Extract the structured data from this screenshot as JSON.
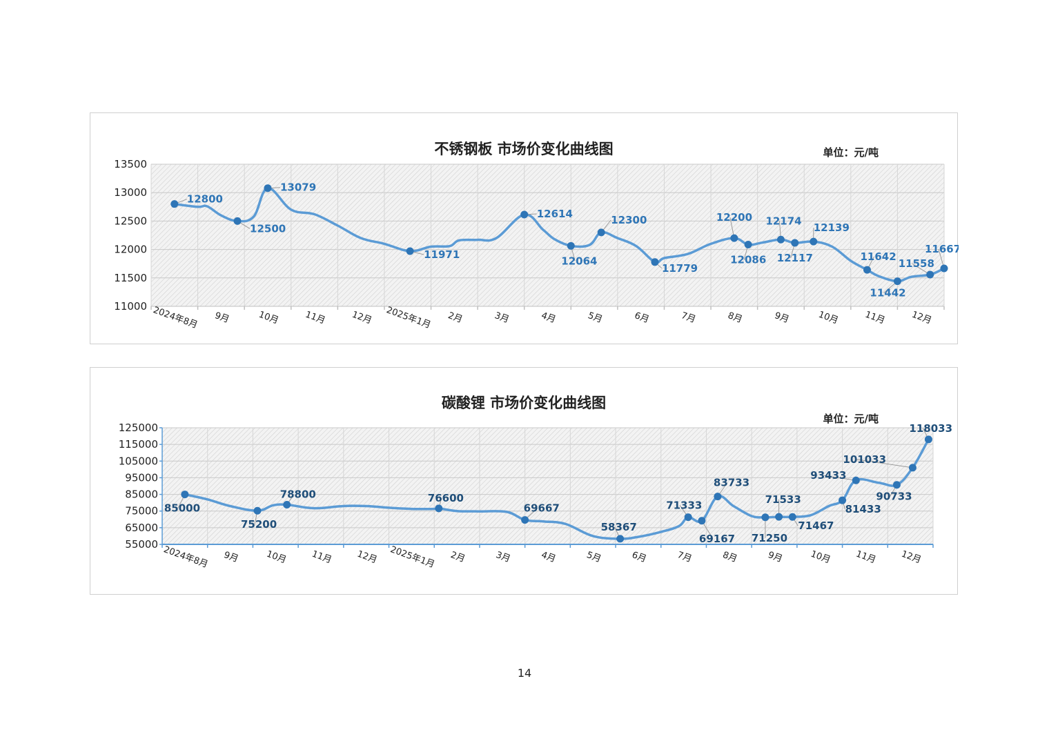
{
  "page": {
    "number": "14"
  },
  "chart_data": [
    {
      "type": "line",
      "title": "不锈钢板 市场价变化曲线图",
      "unit": "单位：元/吨",
      "xlabel": "",
      "ylabel": "",
      "ylim": [
        11000,
        13500
      ],
      "yticks": [
        11000,
        11500,
        12000,
        12500,
        13000,
        13500
      ],
      "x_range": [
        0,
        17
      ],
      "month_ticks": [
        "2024年8月",
        "9月",
        "10月",
        "11月",
        "12月",
        "2025年1月",
        "2月",
        "3月",
        "4月",
        "5月",
        "6月",
        "7月",
        "8月",
        "9月",
        "10月",
        "11月",
        "12月"
      ],
      "line_points": [
        [
          0.5,
          12800
        ],
        [
          1.0,
          12750
        ],
        [
          1.2,
          12760
        ],
        [
          1.5,
          12600
        ],
        [
          1.85,
          12500
        ],
        [
          2.2,
          12580
        ],
        [
          2.5,
          13079
        ],
        [
          3.0,
          12700
        ],
        [
          3.5,
          12620
        ],
        [
          4.0,
          12420
        ],
        [
          4.5,
          12200
        ],
        [
          5.0,
          12100
        ],
        [
          5.55,
          11971
        ],
        [
          6.0,
          12050
        ],
        [
          6.4,
          12060
        ],
        [
          6.6,
          12160
        ],
        [
          7.0,
          12170
        ],
        [
          7.4,
          12200
        ],
        [
          8.0,
          12614
        ],
        [
          8.4,
          12350
        ],
        [
          8.65,
          12180
        ],
        [
          9.0,
          12064
        ],
        [
          9.4,
          12080
        ],
        [
          9.65,
          12300
        ],
        [
          10.0,
          12200
        ],
        [
          10.4,
          12060
        ],
        [
          10.8,
          11779
        ],
        [
          11.0,
          11850
        ],
        [
          11.5,
          11920
        ],
        [
          12.0,
          12100
        ],
        [
          12.5,
          12200
        ],
        [
          12.8,
          12086
        ],
        [
          13.1,
          12120
        ],
        [
          13.5,
          12174
        ],
        [
          13.8,
          12117
        ],
        [
          14.2,
          12139
        ],
        [
          14.6,
          12050
        ],
        [
          15.0,
          11800
        ],
        [
          15.35,
          11642
        ],
        [
          15.6,
          11530
        ],
        [
          16.0,
          11442
        ],
        [
          16.3,
          11520
        ],
        [
          16.7,
          11558
        ],
        [
          17.0,
          11667
        ]
      ],
      "markers": [
        {
          "x": 0.5,
          "y": 12800,
          "label": "12800",
          "dx": 18,
          "dy": -2,
          "anchor": "start"
        },
        {
          "x": 1.85,
          "y": 12500,
          "label": "12500",
          "dx": 18,
          "dy": 16,
          "anchor": "start"
        },
        {
          "x": 2.5,
          "y": 13079,
          "label": "13079",
          "dx": 18,
          "dy": 4,
          "anchor": "start"
        },
        {
          "x": 5.55,
          "y": 11971,
          "label": "11971",
          "dx": 20,
          "dy": 10,
          "anchor": "start"
        },
        {
          "x": 8.0,
          "y": 12614,
          "label": "12614",
          "dx": 18,
          "dy": 4,
          "anchor": "start"
        },
        {
          "x": 9.0,
          "y": 12064,
          "label": "12064",
          "dx": -14,
          "dy": 27,
          "anchor": "start"
        },
        {
          "x": 9.65,
          "y": 12300,
          "label": "12300",
          "dx": 14,
          "dy": -13,
          "anchor": "start"
        },
        {
          "x": 10.8,
          "y": 11779,
          "label": "11779",
          "dx": 10,
          "dy": 14,
          "anchor": "start"
        },
        {
          "x": 12.5,
          "y": 12200,
          "label": "12200",
          "dx": -26,
          "dy": -25,
          "anchor": "start"
        },
        {
          "x": 12.8,
          "y": 12086,
          "label": "12086",
          "dx": -26,
          "dy": 27,
          "anchor": "start"
        },
        {
          "x": 13.5,
          "y": 12174,
          "label": "12174",
          "dx": -22,
          "dy": -22,
          "anchor": "start"
        },
        {
          "x": 13.8,
          "y": 12117,
          "label": "12117",
          "dx": -26,
          "dy": 27,
          "anchor": "start"
        },
        {
          "x": 14.2,
          "y": 12139,
          "label": "12139",
          "dx": 0,
          "dy": -15,
          "anchor": "start"
        },
        {
          "x": 15.35,
          "y": 11642,
          "label": "11642",
          "dx": -10,
          "dy": -14,
          "anchor": "start"
        },
        {
          "x": 16.0,
          "y": 11442,
          "label": "11442",
          "dx": -40,
          "dy": 22,
          "anchor": "start"
        },
        {
          "x": 16.7,
          "y": 11558,
          "label": "11558",
          "dx": -46,
          "dy": -11,
          "anchor": "start"
        },
        {
          "x": 17.0,
          "y": 11667,
          "label": "11667",
          "dx": -28,
          "dy": -23,
          "anchor": "start"
        }
      ],
      "colors": {
        "line": "#5b9bd5",
        "marker": "#2e75b6",
        "label": "#2e75b6",
        "axis_text": "#222222"
      }
    },
    {
      "type": "line",
      "title": "碳酸锂 市场价变化曲线图",
      "unit": "单位：元/吨",
      "xlabel": "",
      "ylabel": "",
      "ylim": [
        55000,
        125000
      ],
      "yticks": [
        55000,
        65000,
        75000,
        85000,
        95000,
        105000,
        115000,
        125000
      ],
      "x_range": [
        0,
        17
      ],
      "month_ticks": [
        "2024年8月",
        "9月",
        "10月",
        "11月",
        "12月",
        "2025年1月",
        "2月",
        "3月",
        "4月",
        "5月",
        "6月",
        "7月",
        "8月",
        "9月",
        "10月",
        "11月",
        "12月"
      ],
      "line_points": [
        [
          0.5,
          85000
        ],
        [
          1.0,
          82000
        ],
        [
          1.5,
          78000
        ],
        [
          2.1,
          75200
        ],
        [
          2.45,
          78500
        ],
        [
          2.75,
          78800
        ],
        [
          3.2,
          77000
        ],
        [
          3.5,
          76800
        ],
        [
          4.0,
          78000
        ],
        [
          4.5,
          78000
        ],
        [
          5.0,
          77000
        ],
        [
          5.5,
          76300
        ],
        [
          6.0,
          76300
        ],
        [
          6.1,
          76600
        ],
        [
          6.5,
          75000
        ],
        [
          7.0,
          74800
        ],
        [
          7.6,
          74500
        ],
        [
          8.0,
          69667
        ],
        [
          8.4,
          68800
        ],
        [
          8.9,
          67200
        ],
        [
          9.5,
          60000
        ],
        [
          10.1,
          58367
        ],
        [
          10.5,
          59500
        ],
        [
          11.0,
          62500
        ],
        [
          11.4,
          66000
        ],
        [
          11.6,
          71333
        ],
        [
          11.9,
          69167
        ],
        [
          12.25,
          83733
        ],
        [
          12.6,
          78000
        ],
        [
          13.0,
          72000
        ],
        [
          13.3,
          71250
        ],
        [
          13.6,
          71533
        ],
        [
          13.9,
          71467
        ],
        [
          14.3,
          72500
        ],
        [
          14.7,
          78000
        ],
        [
          15.0,
          81433
        ],
        [
          15.3,
          93433
        ],
        [
          15.8,
          92000
        ],
        [
          16.2,
          90733
        ],
        [
          16.55,
          101033
        ],
        [
          16.9,
          118033
        ]
      ],
      "markers": [
        {
          "x": 0.5,
          "y": 85000,
          "label": "85000",
          "dx": -30,
          "dy": 25,
          "anchor": "start"
        },
        {
          "x": 2.1,
          "y": 75200,
          "label": "75200",
          "dx": -24,
          "dy": 25,
          "anchor": "start"
        },
        {
          "x": 2.75,
          "y": 78800,
          "label": "78800",
          "dx": -10,
          "dy": -10,
          "anchor": "start"
        },
        {
          "x": 6.1,
          "y": 76600,
          "label": "76600",
          "dx": -16,
          "dy": -10,
          "anchor": "start"
        },
        {
          "x": 8.0,
          "y": 69667,
          "label": "69667",
          "dx": -2,
          "dy": -12,
          "anchor": "start"
        },
        {
          "x": 10.1,
          "y": 58367,
          "label": "58367",
          "dx": -28,
          "dy": -12,
          "anchor": "start"
        },
        {
          "x": 11.6,
          "y": 71333,
          "label": "71333",
          "dx": -32,
          "dy": -12,
          "anchor": "start"
        },
        {
          "x": 11.9,
          "y": 69167,
          "label": "69167",
          "dx": -4,
          "dy": 31,
          "anchor": "start"
        },
        {
          "x": 12.25,
          "y": 83733,
          "label": "83733",
          "dx": -6,
          "dy": -15,
          "anchor": "start"
        },
        {
          "x": 13.3,
          "y": 71250,
          "label": "71250",
          "dx": -20,
          "dy": 35,
          "anchor": "start"
        },
        {
          "x": 13.6,
          "y": 71533,
          "label": "71533",
          "dx": -20,
          "dy": -20,
          "anchor": "start"
        },
        {
          "x": 13.9,
          "y": 71467,
          "label": "71467",
          "dx": 8,
          "dy": 18,
          "anchor": "start"
        },
        {
          "x": 15.0,
          "y": 81433,
          "label": "81433",
          "dx": 4,
          "dy": 18,
          "anchor": "start"
        },
        {
          "x": 15.3,
          "y": 93433,
          "label": "93433",
          "dx": -66,
          "dy": -2,
          "anchor": "start"
        },
        {
          "x": 16.2,
          "y": 90733,
          "label": "90733",
          "dx": -30,
          "dy": 22,
          "anchor": "start"
        },
        {
          "x": 16.55,
          "y": 101033,
          "label": "101033",
          "dx": -101,
          "dy": -7,
          "anchor": "start"
        },
        {
          "x": 16.9,
          "y": 118033,
          "label": "118033",
          "dx": -28,
          "dy": -11,
          "anchor": "start"
        }
      ],
      "colors": {
        "line": "#5b9bd5",
        "marker": "#2e75b6",
        "label": "#1f4e79",
        "axis_text": "#222222",
        "axis_line": "#5b9bd5"
      }
    }
  ]
}
